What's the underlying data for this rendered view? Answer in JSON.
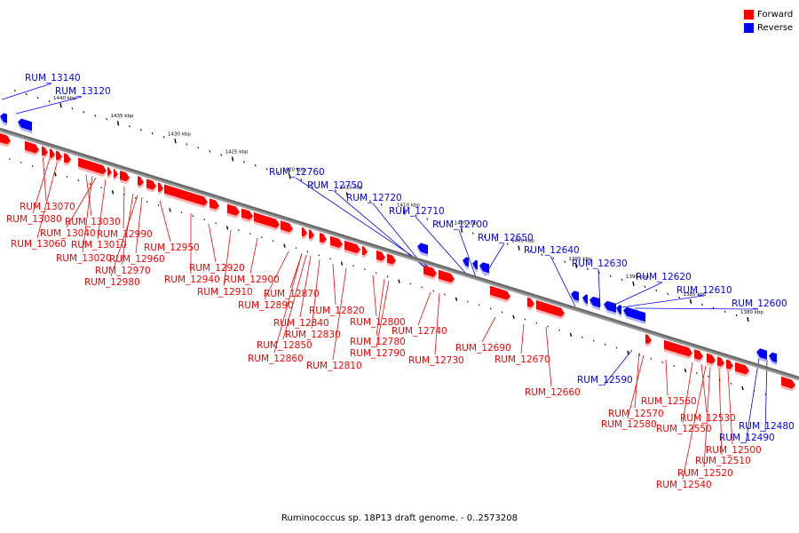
{
  "legend": {
    "forward_label": "Forward",
    "reverse_label": "Reverse",
    "forward_color": "#ff0000",
    "reverse_color": "#0000ff"
  },
  "caption": "Ruminococcus sp. 18P13 draft genome. - 0..2573208",
  "axis": {
    "kbp_marks": [
      {
        "kbp": 1440,
        "label": "1440 kbp"
      },
      {
        "kbp": 1435,
        "label": "1435 kbp"
      },
      {
        "kbp": 1430,
        "label": "1430 kbp"
      },
      {
        "kbp": 1425,
        "label": "1425 kbp"
      },
      {
        "kbp": 1420,
        "label": "1420 kbp"
      },
      {
        "kbp": 1415,
        "label": "1415 kbp"
      },
      {
        "kbp": 1410,
        "label": "1410 kbp"
      },
      {
        "kbp": 1405,
        "label": "1405 kbp"
      },
      {
        "kbp": 1400,
        "label": "1400 kbp"
      },
      {
        "kbp": 1395,
        "label": "1395 kbp"
      },
      {
        "kbp": 1390,
        "label": "1390 kbp"
      },
      {
        "kbp": 1385,
        "label": "1385 kbp"
      },
      {
        "kbp": 1380,
        "label": "1380 kbp"
      }
    ]
  },
  "reverse_labels": [
    "RUM_13140",
    "RUM_13120",
    "RUM_12760",
    "RUM_12750",
    "RUM_12720",
    "RUM_12710",
    "RUM_12700",
    "RUM_12650",
    "RUM_12640",
    "RUM_12630",
    "RUM_12620",
    "RUM_12610",
    "RUM_12600",
    "RUM_12590",
    "RUM_12490",
    "RUM_12480"
  ],
  "forward_labels": [
    "RUM_13070",
    "RUM_13080",
    "RUM_13030",
    "RUM_13040",
    "RUM_13060",
    "RUM_13010",
    "RUM_12990",
    "RUM_13020",
    "RUM_12960",
    "RUM_12950",
    "RUM_12970",
    "RUM_12980",
    "RUM_12920",
    "RUM_12940",
    "RUM_12900",
    "RUM_12910",
    "RUM_12870",
    "RUM_12890",
    "RUM_12820",
    "RUM_12840",
    "RUM_12800",
    "RUM_12830",
    "RUM_12740",
    "RUM_12780",
    "RUM_12850",
    "RUM_12790",
    "RUM_12860",
    "RUM_12730",
    "RUM_12690",
    "RUM_12810",
    "RUM_12670",
    "RUM_12660",
    "RUM_12560",
    "RUM_12570",
    "RUM_12580",
    "RUM_12530",
    "RUM_12550",
    "RUM_12500",
    "RUM_12510",
    "RUM_12520",
    "RUM_12540"
  ]
}
